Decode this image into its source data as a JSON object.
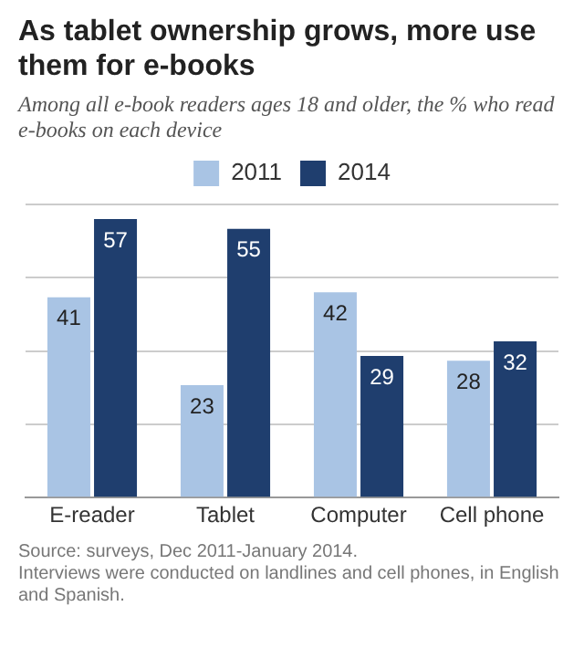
{
  "chart_data": {
    "type": "bar",
    "title": "As tablet ownership grows, more use them for e-books",
    "subtitle": "Among all e-book readers ages 18 and older, the % who read e-books on each device",
    "categories": [
      "E-reader",
      "Tablet",
      "Computer",
      "Cell phone"
    ],
    "series": [
      {
        "name": "2011",
        "color": "#a9c4e4",
        "values": [
          41,
          23,
          42,
          28
        ]
      },
      {
        "name": "2014",
        "color": "#1f3e6e",
        "values": [
          57,
          55,
          29,
          32
        ]
      }
    ],
    "ylim": [
      0,
      60
    ],
    "yticks": [
      {
        "value": 0,
        "label": null
      },
      {
        "value": 15,
        "label": null
      },
      {
        "value": 30,
        "label": null
      },
      {
        "value": 45,
        "label": null
      },
      {
        "value": 60,
        "label": null
      }
    ],
    "grid": "y",
    "legend": "top",
    "tick_labels": "x",
    "data_labels": true,
    "annotations": [
      "Source: surveys, Dec 2011-January 2014.",
      "Interviews were conducted on landlines and cell phones, in English and Spanish."
    ]
  }
}
